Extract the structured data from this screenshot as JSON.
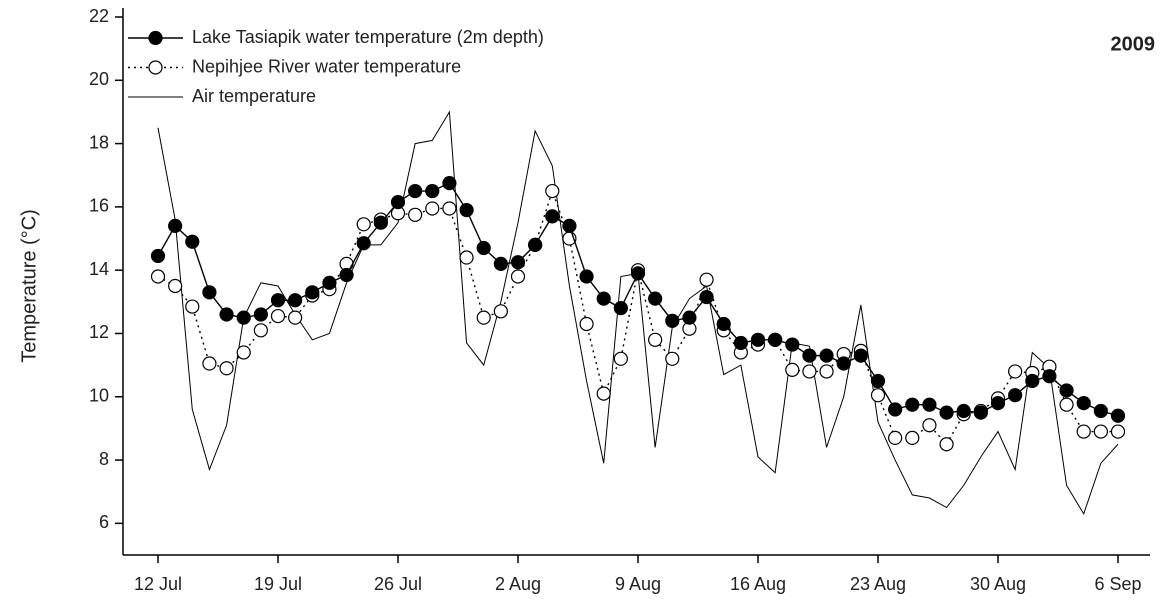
{
  "chart_data": {
    "type": "line",
    "y_label": "Temperature (°C)",
    "annotation": "2009",
    "categories": [
      "12 Jul",
      null,
      null,
      null,
      null,
      null,
      null,
      "19 Jul",
      null,
      null,
      null,
      null,
      null,
      null,
      "26 Jul",
      null,
      null,
      null,
      null,
      null,
      null,
      "2 Aug",
      null,
      null,
      null,
      null,
      null,
      null,
      "9 Aug",
      null,
      null,
      null,
      null,
      null,
      null,
      "16 Aug",
      null,
      null,
      null,
      null,
      null,
      null,
      "23 Aug",
      null,
      null,
      null,
      null,
      null,
      null,
      "30 Aug",
      null,
      null,
      null,
      null,
      null,
      null,
      "6 Sep"
    ],
    "series": [
      {
        "name": "Lake Tasiapik water temperature (2m depth)",
        "color": "#000000",
        "marker": "filled",
        "dash": "solid",
        "values": [
          14.45,
          15.4,
          14.9,
          13.3,
          12.6,
          12.5,
          12.6,
          13.05,
          13.05,
          13.3,
          13.6,
          13.85,
          14.85,
          15.5,
          16.15,
          16.5,
          16.5,
          16.75,
          15.9,
          14.7,
          14.2,
          14.25,
          14.8,
          15.7,
          15.4,
          13.8,
          13.1,
          12.8,
          13.9,
          13.1,
          12.4,
          12.5,
          13.15,
          12.3,
          11.7,
          11.8,
          11.8,
          11.65,
          11.3,
          11.3,
          11.05,
          11.3,
          10.5,
          9.6,
          9.75,
          9.75,
          9.5,
          9.55,
          9.5,
          9.8,
          10.05,
          10.5,
          10.65,
          10.2,
          9.8,
          9.55,
          9.4
        ]
      },
      {
        "name": "Nepihjee River water temperature",
        "color": "#000000",
        "marker": "open",
        "dash": "dotted",
        "values": [
          13.8,
          13.5,
          12.85,
          11.05,
          10.9,
          11.4,
          12.1,
          12.55,
          12.5,
          13.2,
          13.4,
          14.2,
          15.45,
          15.6,
          15.8,
          15.75,
          15.95,
          15.95,
          14.4,
          12.5,
          12.7,
          13.8,
          14.8,
          16.5,
          15.0,
          12.3,
          10.1,
          11.2,
          14.0,
          11.8,
          11.2,
          12.15,
          13.7,
          12.1,
          11.4,
          11.65,
          11.8,
          10.85,
          10.8,
          10.8,
          11.35,
          11.45,
          10.05,
          8.7,
          8.7,
          9.1,
          8.5,
          9.45,
          9.55,
          9.95,
          10.8,
          10.75,
          10.95,
          9.75,
          8.9,
          8.9,
          8.9
        ]
      },
      {
        "name": "Air temperature",
        "color": "#000000",
        "marker": "none",
        "dash": "solid",
        "values": [
          18.5,
          15.6,
          9.6,
          7.7,
          9.1,
          12.5,
          13.6,
          13.5,
          12.6,
          11.8,
          12.0,
          13.6,
          14.8,
          14.8,
          15.5,
          18.0,
          18.1,
          19.0,
          11.7,
          11.0,
          13.0,
          15.5,
          18.4,
          17.3,
          13.5,
          10.5,
          7.9,
          13.8,
          13.9,
          8.4,
          12.2,
          13.1,
          13.5,
          10.7,
          11.0,
          8.1,
          7.6,
          11.7,
          11.6,
          8.4,
          10.0,
          12.9,
          9.2,
          8.0,
          6.9,
          6.8,
          6.5,
          7.2,
          8.1,
          8.9,
          7.7,
          11.4,
          10.9,
          7.2,
          6.3,
          7.9,
          8.5
        ]
      }
    ],
    "ylim": [
      5,
      22
    ],
    "yticks": [
      6,
      8,
      10,
      12,
      14,
      16,
      18,
      20,
      22
    ],
    "grid": false,
    "legend": "top-left"
  }
}
